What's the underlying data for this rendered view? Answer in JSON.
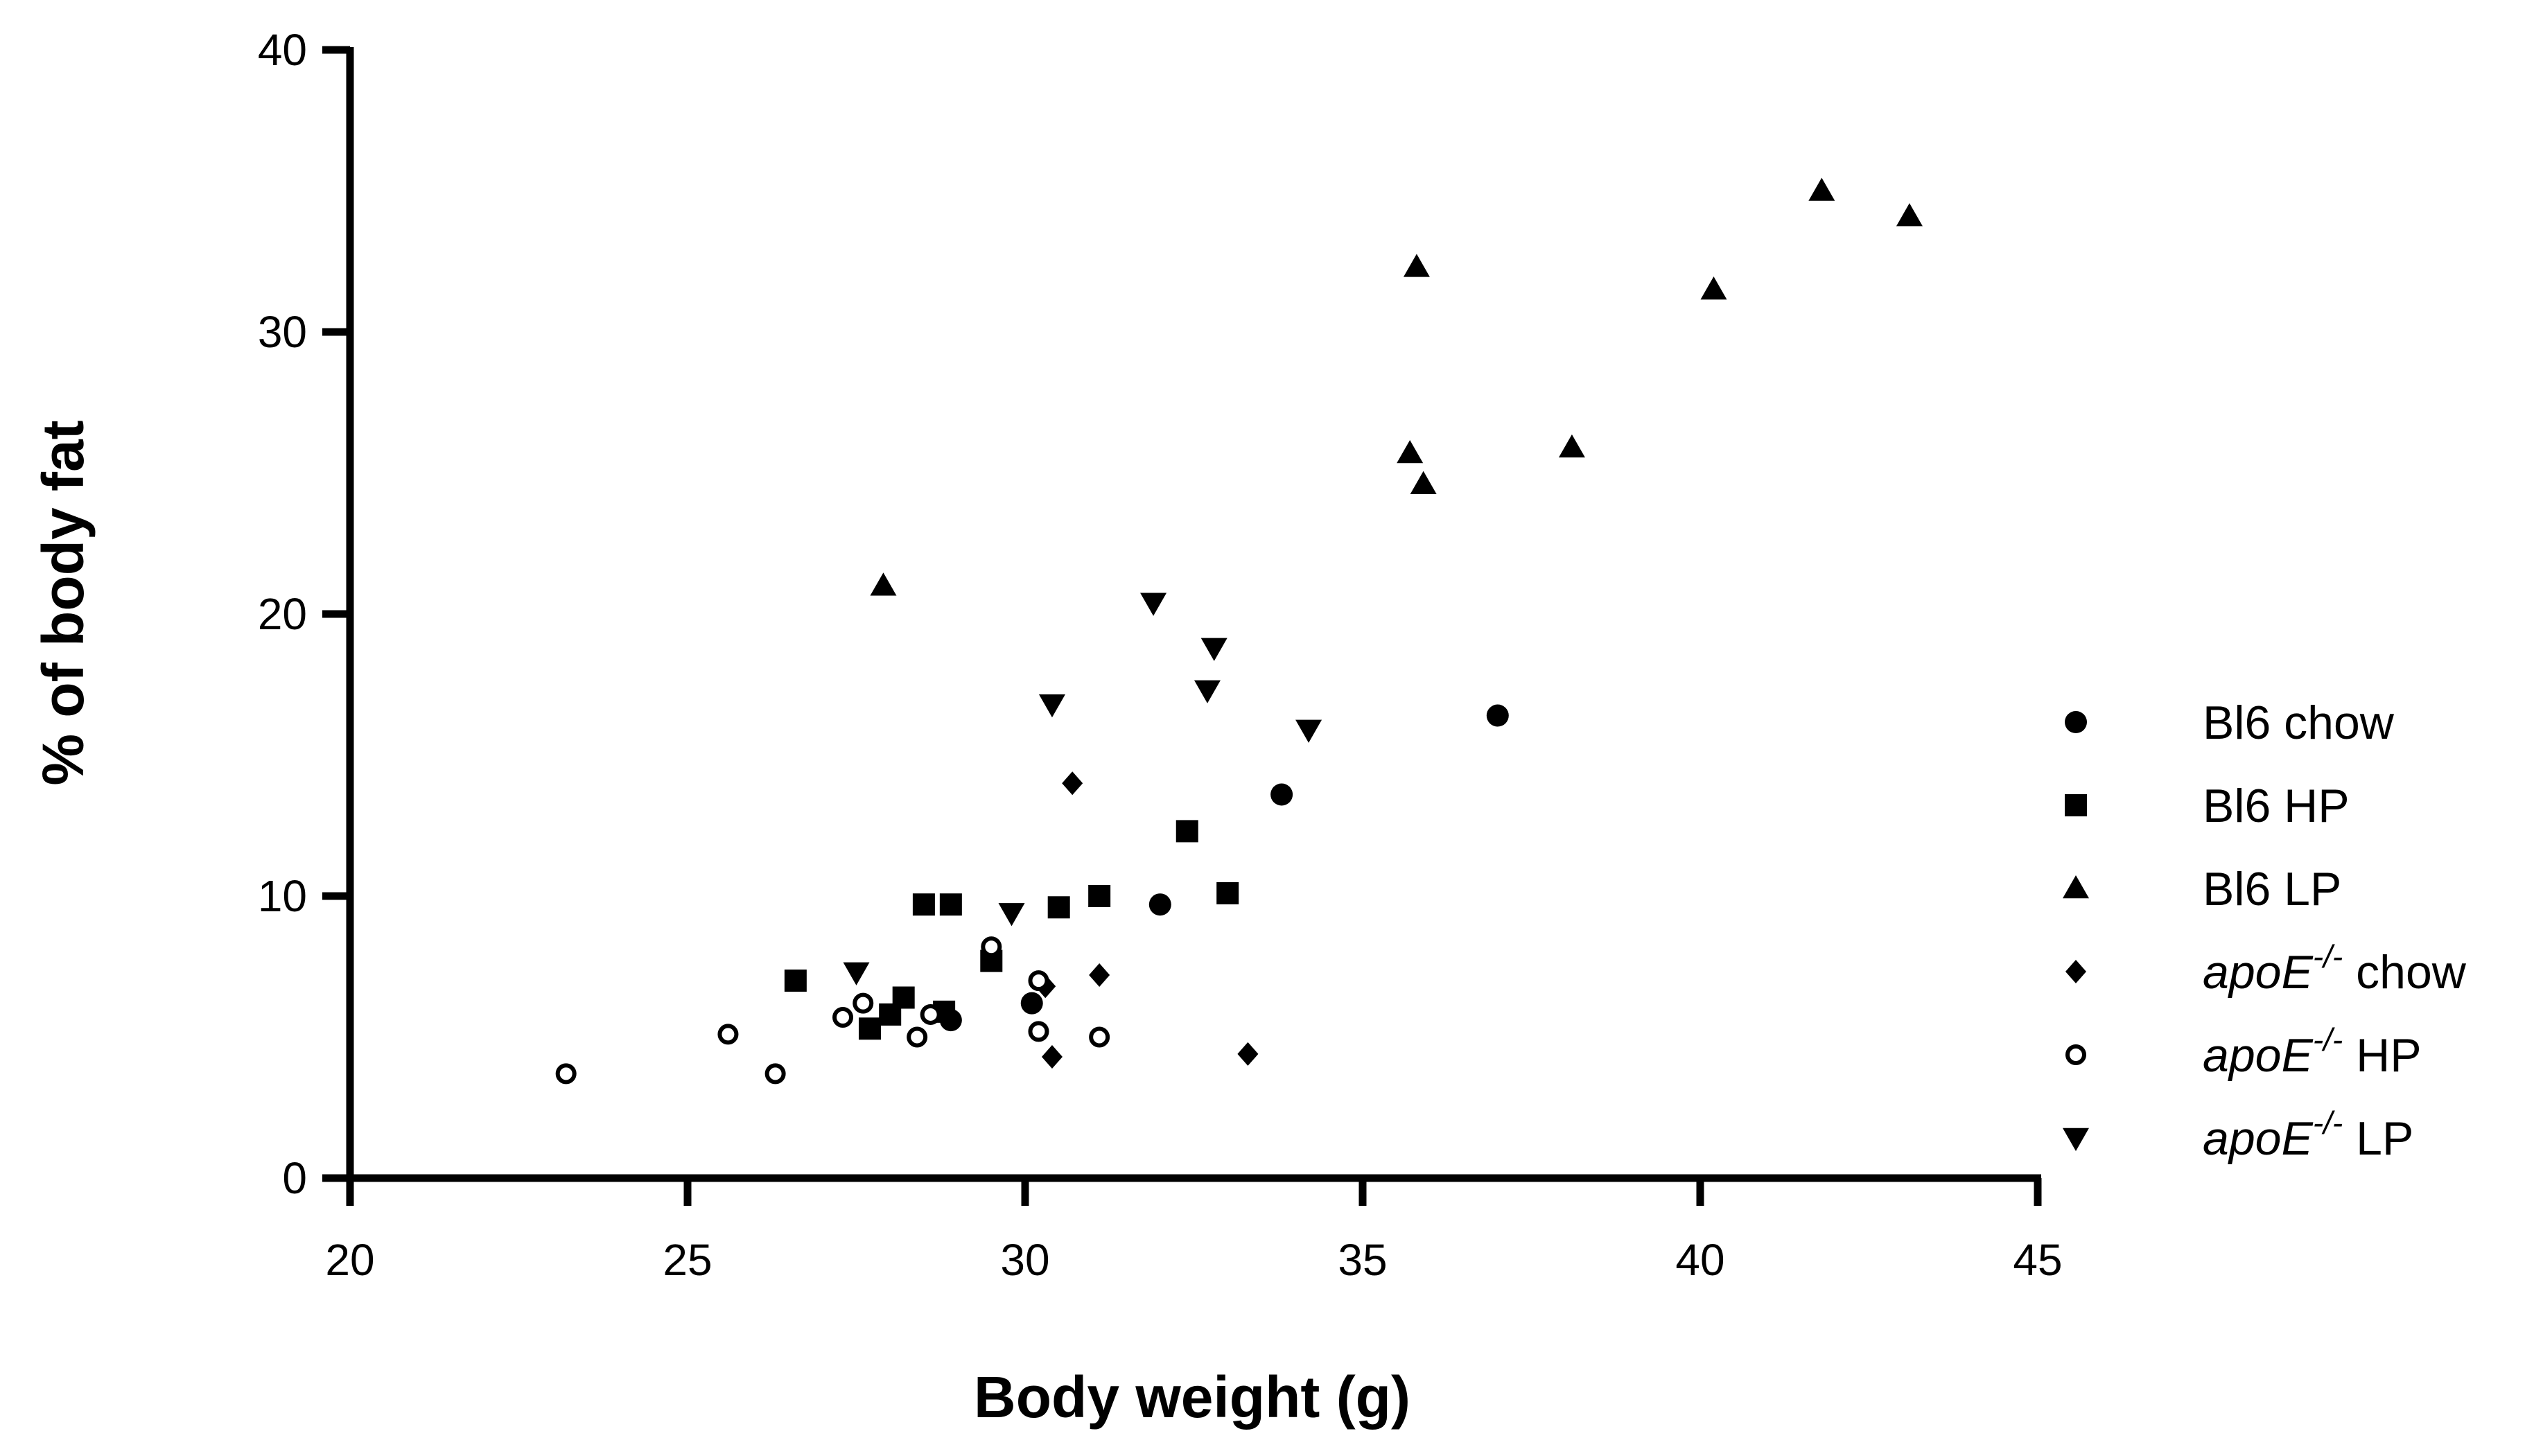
{
  "chart_data": {
    "type": "scatter",
    "title": "",
    "xlabel": "Body weight (g)",
    "ylabel": "% of body fat",
    "xlim": [
      20,
      45
    ],
    "ylim": [
      0,
      40
    ],
    "xticks": [
      "20",
      "25",
      "30",
      "35",
      "40",
      "45"
    ],
    "yticks": [
      "0",
      "10",
      "20",
      "30",
      "40"
    ],
    "grid": false,
    "legend_position": "right",
    "series": [
      {
        "name": "Bl6 chow",
        "prefix": "Bl6 chow",
        "sup": "",
        "suffix": "",
        "italic_prefix": false,
        "marker": "circle",
        "points": [
          [
            28.9,
            5.6
          ],
          [
            30.1,
            6.2
          ],
          [
            32.0,
            9.7
          ],
          [
            33.8,
            13.6
          ],
          [
            37.0,
            16.4
          ]
        ]
      },
      {
        "name": "Bl6 HP",
        "prefix": "Bl6 HP",
        "sup": "",
        "suffix": "",
        "italic_prefix": false,
        "marker": "square",
        "points": [
          [
            26.6,
            7.0
          ],
          [
            27.7,
            5.3
          ],
          [
            28.0,
            5.8
          ],
          [
            28.2,
            6.4
          ],
          [
            28.5,
            9.7
          ],
          [
            28.8,
            5.9
          ],
          [
            28.9,
            9.7
          ],
          [
            29.5,
            7.7
          ],
          [
            30.5,
            9.6
          ],
          [
            31.1,
            10.0
          ],
          [
            32.4,
            12.3
          ],
          [
            33.0,
            10.1
          ]
        ]
      },
      {
        "name": "Bl6 LP",
        "prefix": "Bl6 LP",
        "sup": "",
        "suffix": "",
        "italic_prefix": false,
        "marker": "triangle-up",
        "points": [
          [
            27.9,
            21.0
          ],
          [
            35.7,
            25.7
          ],
          [
            35.8,
            32.3
          ],
          [
            35.9,
            24.6
          ],
          [
            38.1,
            25.9
          ],
          [
            40.2,
            31.5
          ],
          [
            41.8,
            35.0
          ],
          [
            43.1,
            34.1
          ]
        ]
      },
      {
        "name": "apoE-/- chow",
        "prefix": "apoE",
        "sup": "-/-",
        "suffix": " chow",
        "italic_prefix": true,
        "marker": "diamond",
        "points": [
          [
            30.3,
            6.8
          ],
          [
            30.4,
            4.3
          ],
          [
            30.7,
            14.0
          ],
          [
            31.1,
            7.2
          ],
          [
            33.3,
            4.4
          ]
        ]
      },
      {
        "name": "apoE-/- HP",
        "prefix": "apoE",
        "sup": "-/-",
        "suffix": " HP",
        "italic_prefix": true,
        "marker": "circle-open",
        "points": [
          [
            23.2,
            3.7
          ],
          [
            25.6,
            5.1
          ],
          [
            26.3,
            3.7
          ],
          [
            27.3,
            5.7
          ],
          [
            27.6,
            6.2
          ],
          [
            28.4,
            5.0
          ],
          [
            28.6,
            5.8
          ],
          [
            29.5,
            8.2
          ],
          [
            30.2,
            7.0
          ],
          [
            30.2,
            5.2
          ],
          [
            31.1,
            5.0
          ]
        ]
      },
      {
        "name": "apoE-/- LP",
        "prefix": "apoE",
        "sup": "-/-",
        "suffix": " LP",
        "italic_prefix": true,
        "marker": "triangle-down",
        "points": [
          [
            27.5,
            7.3
          ],
          [
            29.8,
            9.4
          ],
          [
            30.4,
            16.8
          ],
          [
            31.9,
            20.4
          ],
          [
            32.7,
            17.3
          ],
          [
            32.8,
            18.8
          ],
          [
            34.2,
            15.9
          ]
        ]
      }
    ]
  }
}
